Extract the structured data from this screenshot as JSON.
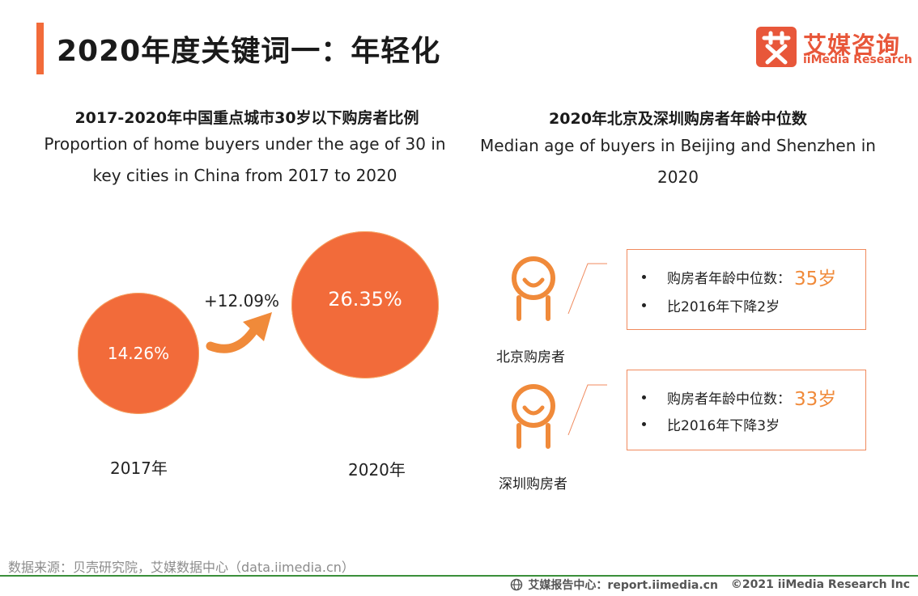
{
  "title": "2020年度关键词一：年轻化",
  "logo": {
    "name_cn": "艾媒咨询",
    "name_en": "iiMedia Research",
    "mark_char": "艾",
    "brand_color": "#e8573a"
  },
  "left_panel": {
    "title_cn": "2017-2020年中国重点城市30岁以下购房者比例",
    "title_en": "Proportion of home buyers under the age of 30 in key cities in China from 2017 to 2020",
    "circles": [
      {
        "year": "2017年",
        "value": "14.26%"
      },
      {
        "year": "2020年",
        "value": "26.35%"
      }
    ],
    "growth": "+12.09%",
    "accent_color": "#f26b3a"
  },
  "right_panel": {
    "title_cn": "2020年北京及深圳购房者年龄中位数",
    "title_en": "Median age of buyers in Beijing and Shenzhen in 2020",
    "cards": [
      {
        "label": "北京购房者",
        "median_label": "购房者年龄中位数：",
        "median_value": "35岁",
        "change": "比2016年下降2岁",
        "icon": "person-icon"
      },
      {
        "label": "深圳购房者",
        "median_label": "购房者年龄中位数：",
        "median_value": "33岁",
        "change": "比2016年下降3岁",
        "icon": "person-icon"
      }
    ]
  },
  "source": "数据来源：贝壳研究院，艾媒数据中心（data.iimedia.cn）",
  "footer": {
    "center_label": "艾媒报告中心：report.iimedia.cn",
    "copyright": "©2021  iiMedia Research  Inc",
    "icon": "globe-icon"
  }
}
